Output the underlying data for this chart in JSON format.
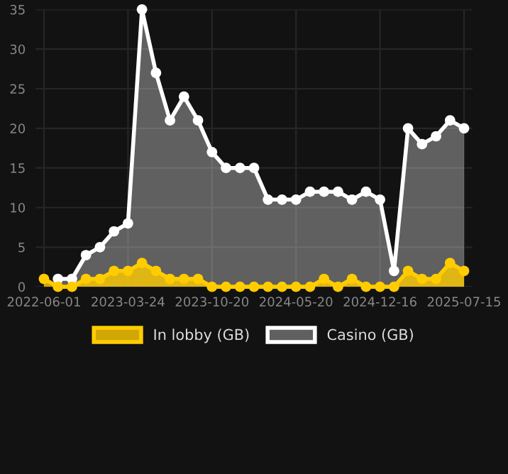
{
  "chart_data": {
    "type": "area",
    "categories": [
      "2022-06-01",
      null,
      null,
      null,
      null,
      null,
      "2023-03-24",
      null,
      null,
      null,
      null,
      null,
      "2023-10-20",
      null,
      null,
      null,
      null,
      null,
      "2024-05-20",
      null,
      null,
      null,
      null,
      null,
      "2024-12-16",
      null,
      null,
      null,
      null,
      null,
      "2025-07-15"
    ],
    "series": [
      {
        "name": "In lobby (GB)",
        "color": "#ffcc00",
        "values": [
          1,
          0,
          0,
          1,
          1,
          2,
          2,
          3,
          2,
          1,
          1,
          1,
          0,
          0,
          0,
          0,
          0,
          0,
          0,
          0,
          1,
          0,
          1,
          0,
          0,
          0,
          2,
          1,
          1,
          3,
          2
        ]
      },
      {
        "name": "Casino (GB)",
        "color": "#ffffff",
        "values": [
          null,
          1,
          1,
          4,
          5,
          7,
          8,
          35,
          27,
          21,
          24,
          21,
          17,
          15,
          15,
          15,
          11,
          11,
          11,
          12,
          12,
          12,
          11,
          12,
          11,
          2,
          20,
          18,
          19,
          21,
          20
        ]
      }
    ],
    "ylim": [
      0,
      35
    ],
    "yticks": [
      0,
      5,
      10,
      15,
      20,
      25,
      30,
      35
    ],
    "grid": true,
    "legend": "bottom",
    "marker": "circle",
    "line_style": "solid"
  }
}
